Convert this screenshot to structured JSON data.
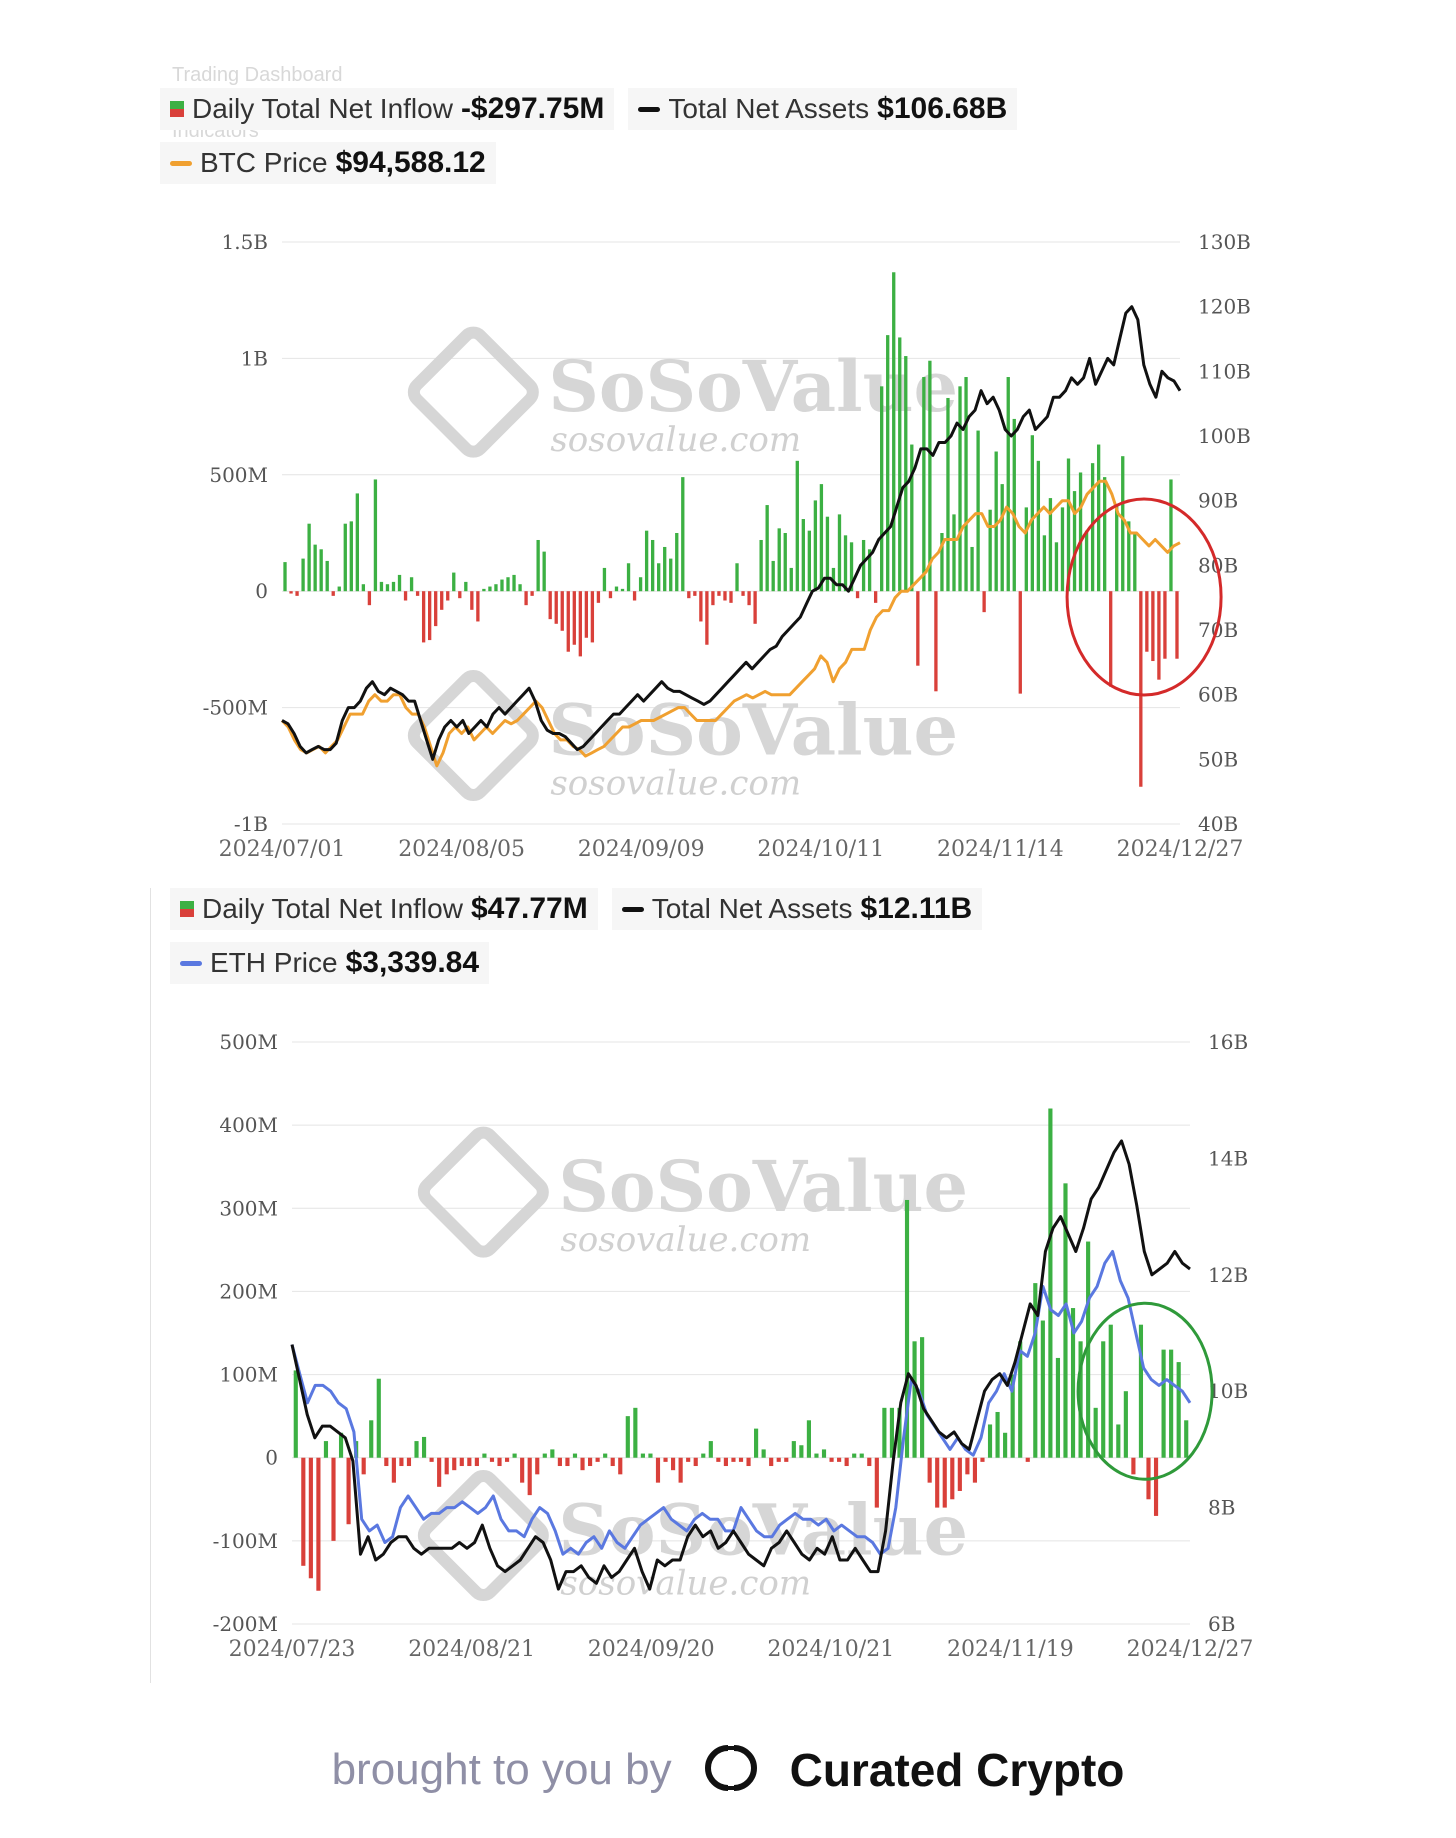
{
  "header_ghost": {
    "line1": "Trading Dashboard",
    "line2": "Indicators"
  },
  "btc": {
    "legend": {
      "inflow_label": "Daily Total Net Inflow",
      "inflow_value": "-$297.75M",
      "assets_label": "Total Net Assets",
      "assets_value": "$106.68B",
      "price_label": "BTC Price",
      "price_value": "$94,588.12"
    },
    "watermark": {
      "brand": "SoSoValue",
      "url": "sosovalue.com"
    }
  },
  "eth": {
    "legend": {
      "inflow_label": "Daily Total Net Inflow",
      "inflow_value": "$47.77M",
      "assets_label": "Total Net Assets",
      "assets_value": "$12.11B",
      "price_label": "ETH Price",
      "price_value": "$3,339.84"
    },
    "watermark": {
      "brand": "SoSoValue",
      "url": "sosovalue.com"
    }
  },
  "footer": {
    "by_text": "brought to you by",
    "brand_text": "Curated Crypto"
  },
  "colors": {
    "inflow_pos": "#3cb043",
    "inflow_neg": "#d9403a",
    "assets": "#111111",
    "btc_price": "#f0a030",
    "eth_price": "#5a78e0",
    "circle_red": "#d42a2a",
    "circle_green": "#2f9a3a"
  },
  "chart_data": [
    {
      "type": "bar",
      "title": "",
      "x_ticks": [
        "2024/07/01",
        "2024/08/05",
        "2024/09/09",
        "2024/10/11",
        "2024/11/14",
        "2024/12/27"
      ],
      "left_axis": {
        "ticks": [
          "1.5B",
          "1B",
          "500M",
          "0",
          "-500M",
          "-1B"
        ],
        "range": [
          -1000,
          1500
        ],
        "unit": "M"
      },
      "right_axis": {
        "ticks": [
          "130B",
          "120B",
          "110B",
          "100B",
          "90B",
          "80B",
          "70B",
          "60B",
          "50B",
          "40B"
        ],
        "range": [
          40,
          130
        ],
        "unit": "B"
      },
      "grid": true,
      "series": [
        {
          "name": "Daily Total Net Inflow",
          "kind": "bar",
          "axis": "left",
          "values": [
            125,
            -10,
            -20,
            140,
            290,
            200,
            180,
            130,
            -20,
            20,
            290,
            300,
            420,
            30,
            -60,
            480,
            40,
            30,
            40,
            70,
            -40,
            60,
            -20,
            -220,
            -210,
            -150,
            -80,
            -40,
            80,
            -30,
            40,
            -80,
            -130,
            10,
            20,
            30,
            50,
            60,
            70,
            30,
            -60,
            -20,
            220,
            170,
            -120,
            -140,
            -170,
            -260,
            -230,
            -280,
            -200,
            -220,
            -50,
            100,
            -30,
            20,
            10,
            120,
            -40,
            60,
            260,
            220,
            120,
            190,
            140,
            250,
            490,
            -30,
            -20,
            -130,
            -230,
            -60,
            -20,
            -40,
            -50,
            120,
            -20,
            -60,
            -140,
            220,
            370,
            130,
            270,
            250,
            100,
            560,
            310,
            260,
            390,
            460,
            320,
            100,
            330,
            240,
            210,
            -30,
            220,
            180,
            -50,
            880,
            1100,
            1370,
            1090,
            1010,
            630,
            -320,
            920,
            990,
            -430,
            250,
            830,
            330,
            880,
            920,
            190,
            690,
            -90,
            350,
            600,
            460,
            920,
            740,
            -440,
            360,
            670,
            560,
            240,
            400,
            210,
            360,
            570,
            430,
            510,
            260,
            550,
            630,
            490,
            -410,
            370,
            580,
            300,
            250,
            -840,
            -260,
            -300,
            -380,
            -290,
            480,
            -290
          ]
        },
        {
          "name": "Total Net Assets",
          "kind": "line",
          "axis": "right",
          "values": [
            56,
            55.5,
            54,
            52,
            51,
            51.5,
            52,
            51.5,
            51.5,
            52.5,
            56,
            58,
            58,
            59,
            61,
            62,
            60.5,
            60,
            61,
            60.5,
            60,
            59,
            59,
            56,
            53,
            50,
            53,
            55,
            56,
            55,
            56,
            54,
            55,
            56,
            55,
            57,
            58,
            57,
            58,
            59,
            60,
            61,
            59,
            56,
            54.5,
            54,
            54,
            53.5,
            52.5,
            51.5,
            52,
            53,
            54,
            55,
            56,
            57,
            57,
            58,
            59,
            60,
            59,
            60,
            61,
            62,
            61,
            60.5,
            60.5,
            60,
            59.5,
            59,
            58.5,
            59,
            60,
            61,
            62,
            63,
            64,
            65,
            64,
            65,
            66,
            67,
            67.5,
            69,
            70,
            71,
            72,
            74,
            76,
            76.5,
            78,
            78,
            77,
            77,
            76,
            78,
            80,
            81,
            82,
            84,
            85,
            86,
            89,
            92,
            93,
            95,
            98,
            98,
            97,
            99,
            99,
            100,
            102,
            101,
            103,
            104,
            107,
            105,
            106,
            104,
            101,
            100,
            101,
            103,
            104,
            101,
            102,
            103,
            106,
            106,
            107,
            109,
            108,
            109,
            112,
            108,
            110,
            112,
            111,
            115,
            119,
            120,
            118,
            111,
            108,
            106,
            110,
            109,
            108.5,
            107
          ]
        },
        {
          "name": "BTC Price",
          "kind": "line",
          "axis": "right",
          "values": [
            56,
            55,
            53,
            51.5,
            51,
            51.5,
            52,
            51,
            52,
            53,
            55,
            57,
            57,
            57,
            59,
            60,
            59,
            59,
            60,
            60,
            58,
            57,
            57,
            55,
            52,
            49,
            51,
            54,
            55,
            54,
            55,
            53,
            54,
            55,
            54,
            55,
            56,
            55.5,
            56,
            57,
            58,
            59,
            58,
            56,
            54,
            53,
            53,
            52,
            51.5,
            50.5,
            51,
            51.5,
            52,
            53,
            54,
            55,
            55,
            55.5,
            56,
            56,
            56,
            56.5,
            57,
            57.5,
            58,
            58,
            57,
            56,
            56,
            56,
            56,
            57,
            58,
            59,
            59.5,
            60,
            59.5,
            60,
            60.5,
            60,
            60,
            60,
            60,
            61,
            62,
            63,
            64,
            66,
            65,
            62,
            64,
            65,
            67,
            67,
            67,
            70,
            72,
            73,
            73,
            75,
            76,
            76,
            77,
            78,
            79,
            81,
            82,
            84,
            84,
            84,
            86,
            87,
            88,
            88,
            86,
            86,
            87,
            89,
            88,
            86,
            85,
            87,
            88,
            89,
            88,
            89,
            90,
            90,
            88,
            89,
            91,
            92,
            93,
            93,
            91,
            88,
            87,
            85,
            85,
            84,
            83,
            84,
            83,
            82,
            83,
            83.5
          ]
        }
      ],
      "annotation": "red circle around late-December outflows"
    },
    {
      "type": "bar",
      "title": "",
      "x_ticks": [
        "2024/07/23",
        "2024/08/21",
        "2024/09/20",
        "2024/10/21",
        "2024/11/19",
        "2024/12/27"
      ],
      "left_axis": {
        "ticks": [
          "500M",
          "400M",
          "300M",
          "200M",
          "100M",
          "0",
          "-100M",
          "-200M"
        ],
        "range": [
          -200,
          500
        ],
        "unit": "M"
      },
      "right_axis": {
        "ticks": [
          "16B",
          "14B",
          "12B",
          "10B",
          "8B",
          "6B"
        ],
        "range": [
          6,
          16
        ],
        "unit": "B"
      },
      "grid": true,
      "series": [
        {
          "name": "Daily Total Net Inflow",
          "kind": "bar",
          "axis": "left",
          "values": [
            105,
            -130,
            -145,
            -160,
            20,
            -100,
            30,
            -80,
            20,
            -20,
            45,
            95,
            -10,
            -30,
            -10,
            -10,
            20,
            25,
            -5,
            -35,
            -20,
            -15,
            -10,
            -10,
            -10,
            5,
            -5,
            -10,
            -5,
            5,
            -30,
            -45,
            -20,
            5,
            10,
            -10,
            -10,
            5,
            -15,
            -10,
            -5,
            5,
            -10,
            -20,
            50,
            60,
            5,
            5,
            -30,
            -5,
            -15,
            -30,
            -5,
            -10,
            5,
            20,
            -5,
            -10,
            -5,
            -5,
            -10,
            35,
            10,
            -10,
            -5,
            -5,
            20,
            15,
            45,
            5,
            10,
            -5,
            -5,
            -10,
            5,
            5,
            -10,
            -60,
            60,
            60,
            60,
            310,
            140,
            145,
            -30,
            -60,
            -60,
            -50,
            -40,
            -20,
            -30,
            -5,
            40,
            55,
            30,
            100,
            140,
            -5,
            210,
            165,
            420,
            120,
            330,
            180,
            140,
            260,
            60,
            140,
            160,
            40,
            80,
            -20,
            160,
            -50,
            -70,
            130,
            130,
            115,
            45
          ]
        },
        {
          "name": "Total Net Assets",
          "kind": "line",
          "axis": "right",
          "values": [
            10.8,
            10.2,
            9.6,
            9.2,
            9.4,
            9.4,
            9.3,
            9.2,
            8.8,
            7.2,
            7.5,
            7.1,
            7.2,
            7.4,
            7.5,
            7.5,
            7.3,
            7.2,
            7.3,
            7.3,
            7.3,
            7.3,
            7.4,
            7.3,
            7.4,
            7.7,
            7.3,
            7.0,
            6.9,
            7.0,
            7.1,
            7.3,
            7.5,
            7.4,
            7.1,
            6.6,
            6.9,
            6.9,
            7.0,
            6.8,
            6.7,
            7.0,
            6.8,
            6.9,
            7.1,
            7.3,
            6.9,
            6.6,
            7.1,
            7.0,
            7.1,
            7.1,
            7.5,
            7.7,
            7.5,
            7.6,
            7.3,
            7.4,
            7.6,
            7.4,
            7.2,
            7.1,
            7.0,
            7.3,
            7.4,
            7.6,
            7.4,
            7.2,
            7.1,
            7.3,
            7.2,
            7.5,
            7.1,
            7.1,
            7.3,
            7.1,
            6.9,
            6.9,
            7.6,
            8.8,
            9.8,
            10.3,
            10.1,
            9.7,
            9.5,
            9.3,
            9.2,
            9.3,
            9.1,
            9.0,
            9.5,
            10.0,
            10.2,
            10.3,
            10.1,
            10.5,
            11.0,
            11.5,
            11.3,
            12.4,
            12.8,
            13.0,
            12.7,
            12.4,
            12.8,
            13.3,
            13.5,
            13.8,
            14.1,
            14.3,
            13.9,
            13.2,
            12.4,
            12.0,
            12.1,
            12.2,
            12.4,
            12.2,
            12.1
          ]
        },
        {
          "name": "ETH Price",
          "kind": "line",
          "axis": "right",
          "values": [
            10.8,
            10.3,
            9.8,
            10.1,
            10.1,
            10.0,
            9.8,
            9.7,
            9.3,
            7.8,
            7.6,
            7.7,
            7.4,
            7.5,
            8.0,
            8.2,
            8.0,
            7.8,
            7.9,
            7.9,
            8.0,
            8.0,
            8.1,
            8.0,
            7.9,
            8.0,
            8.2,
            7.8,
            7.6,
            7.6,
            7.5,
            7.8,
            8.0,
            7.9,
            7.6,
            7.2,
            7.3,
            7.2,
            7.4,
            7.5,
            7.3,
            7.6,
            7.4,
            7.3,
            7.5,
            7.7,
            7.8,
            7.9,
            8.0,
            7.8,
            7.7,
            7.6,
            7.8,
            7.9,
            7.8,
            7.8,
            7.6,
            7.6,
            8.0,
            7.8,
            7.6,
            7.5,
            7.5,
            7.7,
            7.8,
            7.9,
            7.8,
            7.8,
            7.7,
            7.8,
            7.6,
            7.7,
            7.6,
            7.5,
            7.5,
            7.4,
            7.2,
            7.3,
            8.0,
            9.2,
            10.2,
            10.0,
            9.6,
            9.4,
            9.2,
            9.0,
            9.2,
            9.0,
            8.9,
            9.2,
            9.8,
            10.0,
            10.3,
            10.0,
            10.7,
            10.6,
            11.0,
            11.8,
            11.4,
            11.3,
            11.5,
            11.0,
            11.2,
            11.6,
            11.8,
            12.2,
            12.4,
            11.9,
            11.6,
            11.0,
            10.4,
            10.2,
            10.1,
            10.2,
            10.1,
            10.0,
            9.8
          ]
        }
      ],
      "annotation": "green circle around late-December inflows"
    }
  ]
}
